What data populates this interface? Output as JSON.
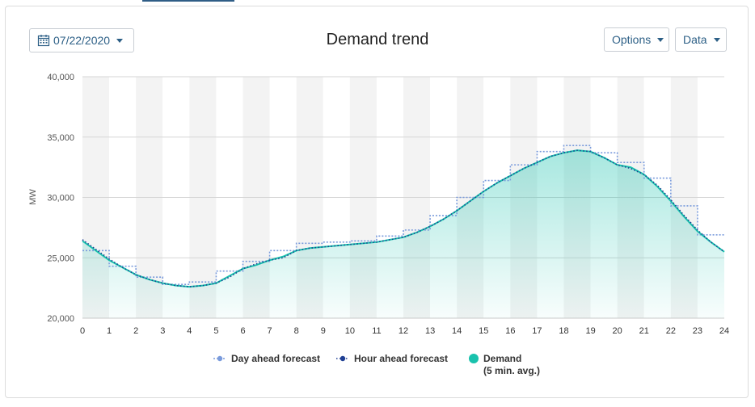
{
  "header": {
    "date_label": "07/22/2020",
    "title": "Demand trend",
    "options_label": "Options",
    "data_label": "Data"
  },
  "icons": {
    "date": "calendar-icon",
    "dropdown": "chevron-down-icon"
  },
  "colors": {
    "day_ahead": "#6f95d9",
    "hour_ahead": "#1f3f93",
    "demand": "#19c2ad",
    "accent": "#2c5f86"
  },
  "chart_data": {
    "type": "line",
    "title": "Demand trend",
    "xlabel": "",
    "ylabel": "MW",
    "xlim": [
      0,
      24
    ],
    "ylim": [
      20000,
      40000
    ],
    "x_ticks": [
      0,
      1,
      2,
      3,
      4,
      5,
      6,
      7,
      8,
      9,
      10,
      11,
      12,
      13,
      14,
      15,
      16,
      17,
      18,
      19,
      20,
      21,
      22,
      23,
      24
    ],
    "y_ticks": [
      20000,
      25000,
      30000,
      35000,
      40000
    ],
    "y_tick_labels": [
      "20,000",
      "25,000",
      "30,000",
      "35,000",
      "40,000"
    ],
    "grid": "horizontal lines with alternating hourly shaded bands",
    "legend_position": "bottom",
    "series": [
      {
        "name": "Day ahead forecast",
        "style": "dotted step",
        "x": [
          0,
          1,
          2,
          3,
          4,
          5,
          6,
          7,
          8,
          9,
          10,
          11,
          12,
          13,
          14,
          15,
          16,
          17,
          18,
          19,
          20,
          21,
          22,
          23
        ],
        "values": [
          25600,
          24300,
          23400,
          22800,
          23000,
          23900,
          24700,
          25600,
          26200,
          26300,
          26400,
          26800,
          27300,
          28500,
          30000,
          31400,
          32700,
          33800,
          34300,
          33700,
          32900,
          31600,
          29300,
          26900
        ]
      },
      {
        "name": "Hour ahead forecast",
        "style": "dotted line",
        "x": [
          0,
          0.5,
          1,
          1.5,
          2,
          2.5,
          3,
          3.5,
          4,
          4.5,
          5,
          5.5,
          6,
          6.5,
          7,
          7.5,
          8,
          8.5,
          9,
          9.5,
          10,
          10.5,
          11,
          11.5,
          12,
          12.5,
          13,
          13.5,
          14,
          14.5,
          15,
          15.5,
          16,
          16.5,
          17,
          17.5,
          18,
          18.5,
          19,
          19.5,
          20,
          20.5,
          21,
          21.5,
          22,
          22.5,
          23,
          23.5,
          24
        ],
        "values": [
          26500,
          25700,
          24900,
          24200,
          23600,
          23200,
          22900,
          22700,
          22600,
          22700,
          22900,
          23400,
          24100,
          24500,
          24800,
          25000,
          25600,
          25800,
          25900,
          26000,
          26100,
          26200,
          26300,
          26500,
          26700,
          27100,
          27600,
          28200,
          28900,
          29700,
          30500,
          31200,
          31800,
          32400,
          32900,
          33400,
          33700,
          33900,
          33800,
          33300,
          32700,
          32400,
          31900,
          31000,
          29800,
          28500,
          27300,
          26300,
          25500
        ]
      },
      {
        "name": "Demand",
        "subtitle": "(5 min. avg.)",
        "style": "solid line with area fill",
        "x": [
          0,
          0.5,
          1,
          1.5,
          2,
          2.5,
          3,
          3.5,
          4,
          4.5,
          5,
          5.5,
          6,
          6.5,
          7,
          7.5,
          8,
          8.5,
          9,
          9.5,
          10,
          10.5,
          11,
          11.5,
          12,
          12.5,
          13,
          13.5,
          14,
          14.5,
          15,
          15.5,
          16,
          16.5,
          17,
          17.5,
          18,
          18.5,
          19,
          19.5,
          20,
          20.5,
          21,
          21.5,
          22,
          22.5,
          23,
          23.5,
          24
        ],
        "values": [
          26400,
          25600,
          24800,
          24200,
          23600,
          23200,
          22900,
          22700,
          22600,
          22700,
          22900,
          23500,
          24100,
          24400,
          24800,
          25100,
          25600,
          25800,
          25900,
          26000,
          26100,
          26200,
          26300,
          26500,
          26700,
          27100,
          27600,
          28200,
          28900,
          29700,
          30500,
          31200,
          31800,
          32400,
          32900,
          33400,
          33700,
          33900,
          33800,
          33300,
          32700,
          32500,
          31900,
          30900,
          29700,
          28400,
          27200,
          26300,
          25500
        ]
      }
    ]
  }
}
